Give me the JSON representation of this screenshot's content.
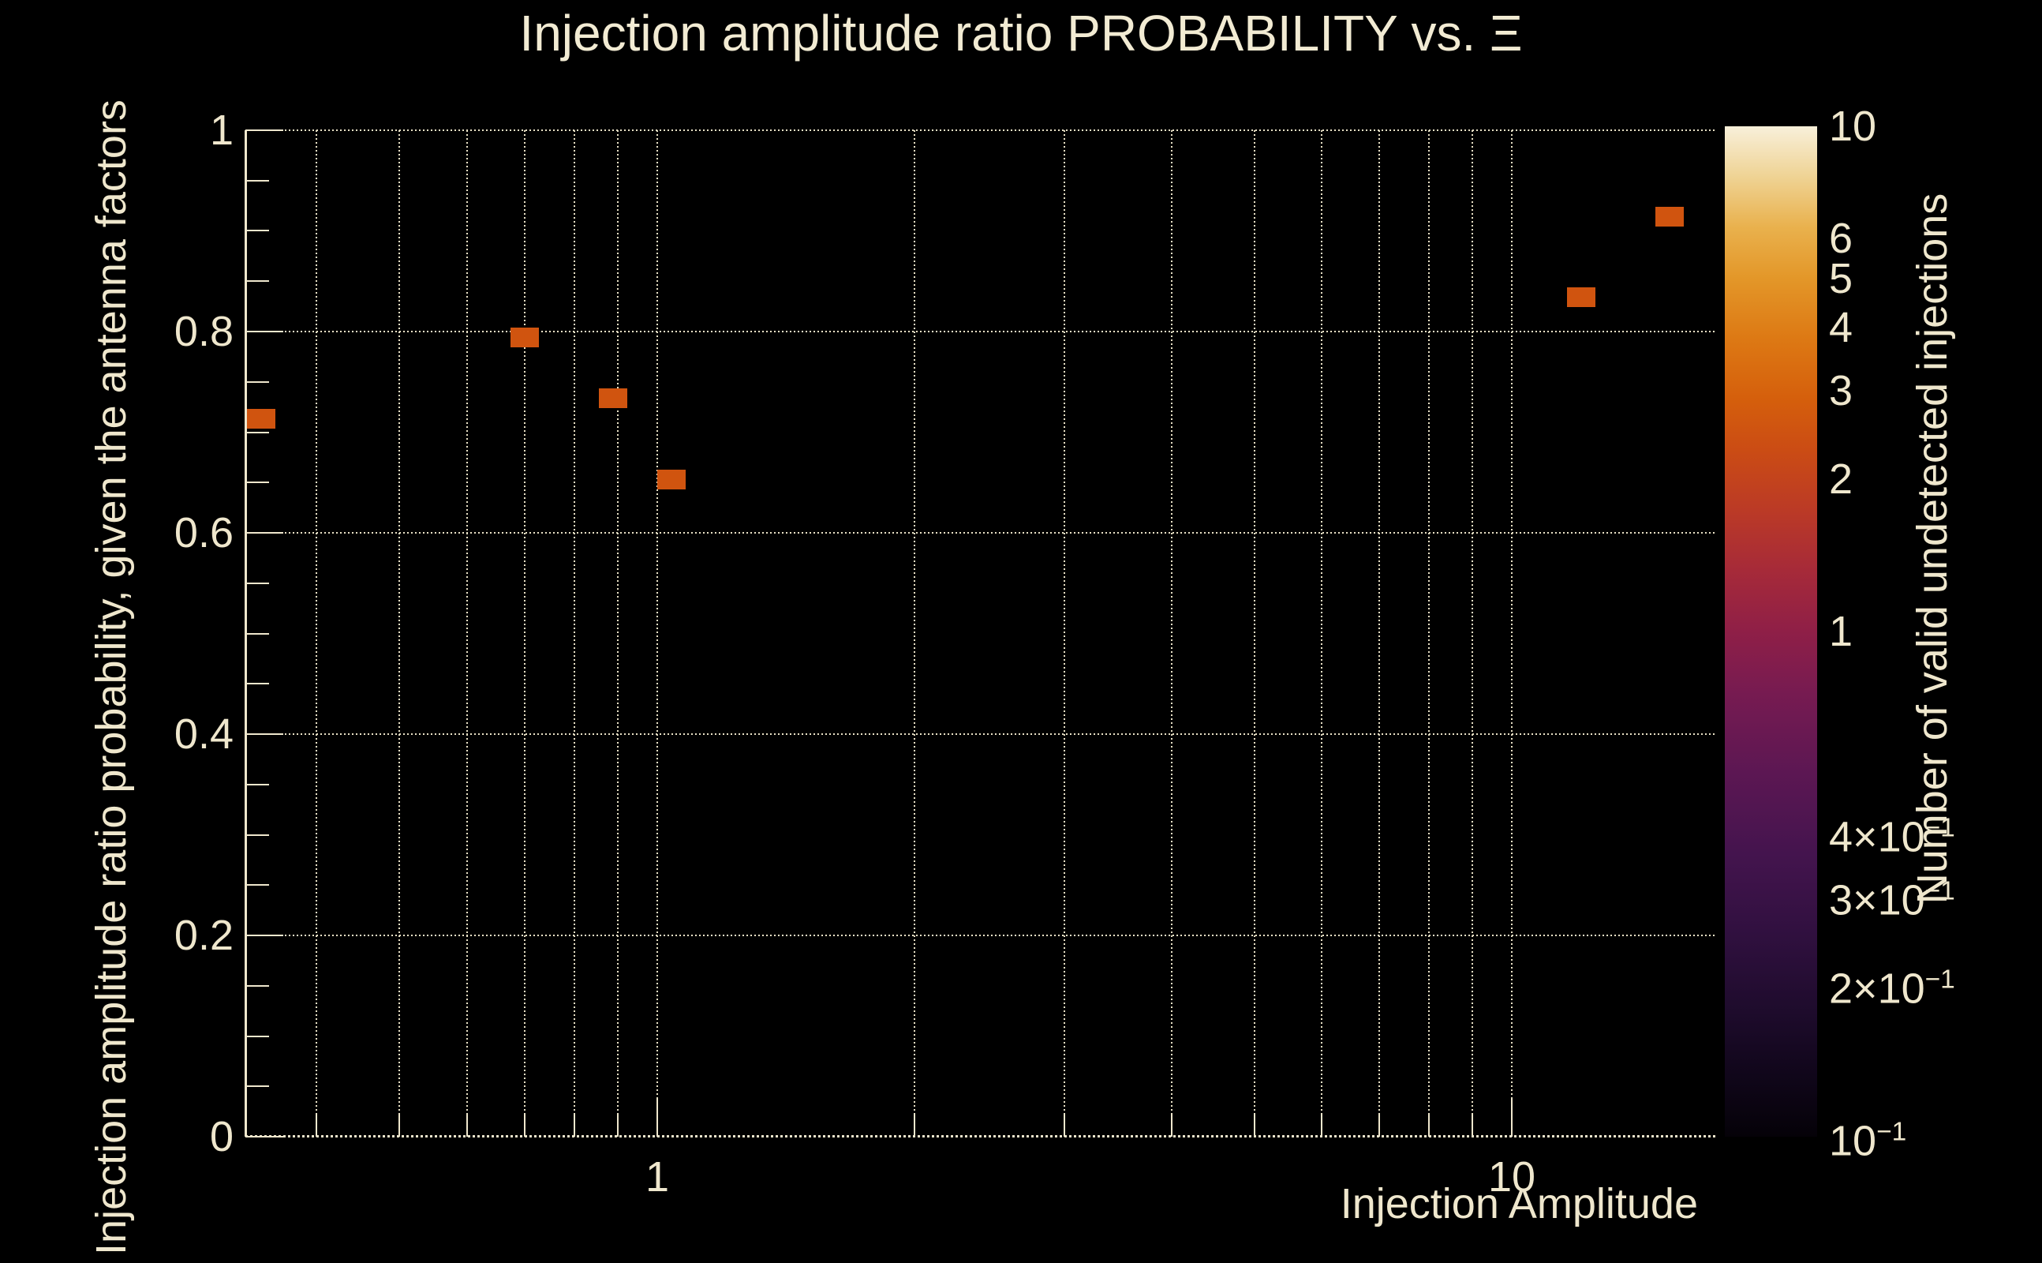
{
  "title": "Injection amplitude ratio PROBABILITY vs.  Ξ",
  "colors": {
    "background": "#000000",
    "text": "#efe7cd",
    "grid": "#e9e1c6",
    "marker": "#d0540f",
    "colorbar_tick": "#000000"
  },
  "x_axis": {
    "title": "Injection Amplitude",
    "scale": "log",
    "min": 0.33,
    "max": 17.35,
    "major_ticks": [
      {
        "v": 1,
        "label": "1"
      },
      {
        "v": 10,
        "label": "10"
      }
    ],
    "minor_ticks": [
      0.4,
      0.5,
      0.6,
      0.7,
      0.8,
      0.9,
      2,
      3,
      4,
      5,
      6,
      7,
      8,
      9
    ]
  },
  "y_axis": {
    "title": "Injection amplitude ratio probability, given the antenna factors",
    "scale": "linear",
    "min": 0,
    "max": 1,
    "major_ticks": [
      {
        "v": 0,
        "label": "0"
      },
      {
        "v": 0.2,
        "label": "0.2"
      },
      {
        "v": 0.4,
        "label": "0.4"
      },
      {
        "v": 0.6,
        "label": "0.6"
      },
      {
        "v": 0.8,
        "label": "0.8"
      },
      {
        "v": 1,
        "label": "1"
      }
    ],
    "minor_step": 0.05,
    "gridline_values": [
      0.2,
      0.4,
      0.6,
      0.8,
      1
    ]
  },
  "colorbar": {
    "title": "Number of valid undetected injections",
    "scale": "log",
    "min": 0.1,
    "max": 10,
    "tick_values": [
      9,
      8,
      7,
      6,
      5,
      4,
      3,
      2,
      1,
      0.9,
      0.8,
      0.7,
      0.6,
      0.5,
      0.4,
      0.3,
      0.2
    ],
    "labels": [
      {
        "v": 10,
        "mantissa": "10",
        "exponent": null
      },
      {
        "v": 6,
        "mantissa": "6",
        "exponent": null
      },
      {
        "v": 5,
        "mantissa": "5",
        "exponent": null
      },
      {
        "v": 4,
        "mantissa": "4",
        "exponent": null
      },
      {
        "v": 3,
        "mantissa": "3",
        "exponent": null
      },
      {
        "v": 2,
        "mantissa": "2",
        "exponent": null
      },
      {
        "v": 1,
        "mantissa": "1",
        "exponent": null
      },
      {
        "v": 0.4,
        "mantissa": "4×10",
        "exponent": "−1"
      },
      {
        "v": 0.3,
        "mantissa": "3×10",
        "exponent": "−1"
      },
      {
        "v": 0.2,
        "mantissa": "2×10",
        "exponent": "−1"
      },
      {
        "v": 0.1,
        "mantissa": "10",
        "exponent": "−1"
      }
    ],
    "gradient_stops_bottom_to_top": [
      [
        0.0,
        "#050208"
      ],
      [
        0.06,
        "#10061a"
      ],
      [
        0.12,
        "#1d0b2b"
      ],
      [
        0.2,
        "#30103f"
      ],
      [
        0.28,
        "#44144e"
      ],
      [
        0.36,
        "#5c1753"
      ],
      [
        0.44,
        "#771b51"
      ],
      [
        0.5,
        "#8f1f47"
      ],
      [
        0.56,
        "#a62a39"
      ],
      [
        0.62,
        "#bb3a26"
      ],
      [
        0.68,
        "#cb4c14"
      ],
      [
        0.73,
        "#d55f0c"
      ],
      [
        0.79,
        "#dd7914"
      ],
      [
        0.85,
        "#e39729"
      ],
      [
        0.9,
        "#e9b14d"
      ],
      [
        0.95,
        "#efd394"
      ],
      [
        1.0,
        "#f8f0da"
      ]
    ]
  },
  "chart_data": {
    "type": "scatter",
    "title": "Injection amplitude ratio PROBABILITY vs. Ξ",
    "xlabel": "Injection Amplitude",
    "ylabel": "Injection amplitude ratio probability, given the antenna factors",
    "zlabel": "Number of valid undetected injections",
    "x_scale": "log",
    "xlim": [
      0.33,
      17.35
    ],
    "ylim": [
      0,
      1
    ],
    "z_scale": "log",
    "zlim": [
      0.1,
      10
    ],
    "grid": true,
    "marker": "filled-box",
    "points": [
      {
        "x": 0.344,
        "y": 0.713,
        "z": 2
      },
      {
        "x": 0.7,
        "y": 0.794,
        "z": 2
      },
      {
        "x": 0.888,
        "y": 0.734,
        "z": 2
      },
      {
        "x": 1.04,
        "y": 0.653,
        "z": 2
      },
      {
        "x": 12.07,
        "y": 0.834,
        "z": 2
      },
      {
        "x": 15.31,
        "y": 0.914,
        "z": 2
      }
    ]
  }
}
